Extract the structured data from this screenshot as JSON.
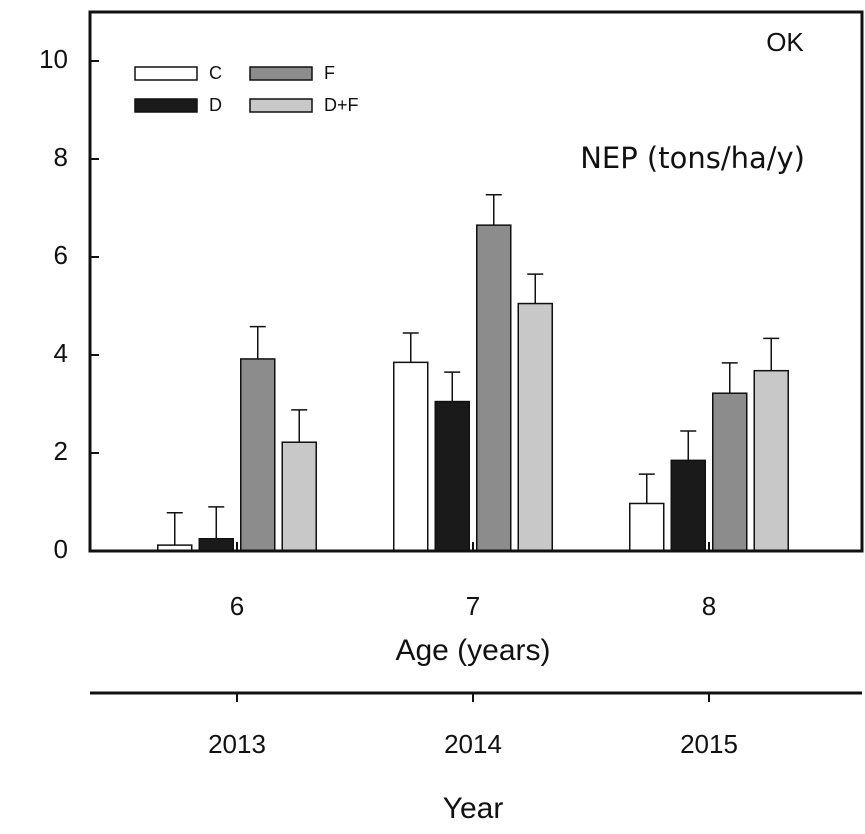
{
  "chart_data": {
    "type": "bar",
    "annotations": [
      "OK",
      "NEP (tons/ha/y)"
    ],
    "xlabel": "Age (years)",
    "categories": [
      "6",
      "7",
      "8"
    ],
    "secondary_xlabel": "Year",
    "secondary_categories": [
      "2013",
      "2014",
      "2015"
    ],
    "series": [
      {
        "name": "C",
        "color": "#ffffff",
        "values": [
          0.12,
          3.85,
          0.97
        ],
        "errors": [
          0.66,
          0.6,
          0.6
        ]
      },
      {
        "name": "D",
        "color": "#1a1a1a",
        "values": [
          0.25,
          3.05,
          1.85
        ],
        "errors": [
          0.65,
          0.6,
          0.6
        ]
      },
      {
        "name": "F",
        "color": "#8c8c8c",
        "values": [
          3.92,
          6.65,
          3.22
        ],
        "errors": [
          0.66,
          0.62,
          0.62
        ]
      },
      {
        "name": "D+F",
        "color": "#c8c8c8",
        "values": [
          2.22,
          5.05,
          3.68
        ],
        "errors": [
          0.66,
          0.6,
          0.66
        ]
      }
    ],
    "ylim": [
      0,
      11
    ],
    "yticks": [
      0,
      2,
      4,
      6,
      8,
      10
    ],
    "legend": "upper left"
  }
}
